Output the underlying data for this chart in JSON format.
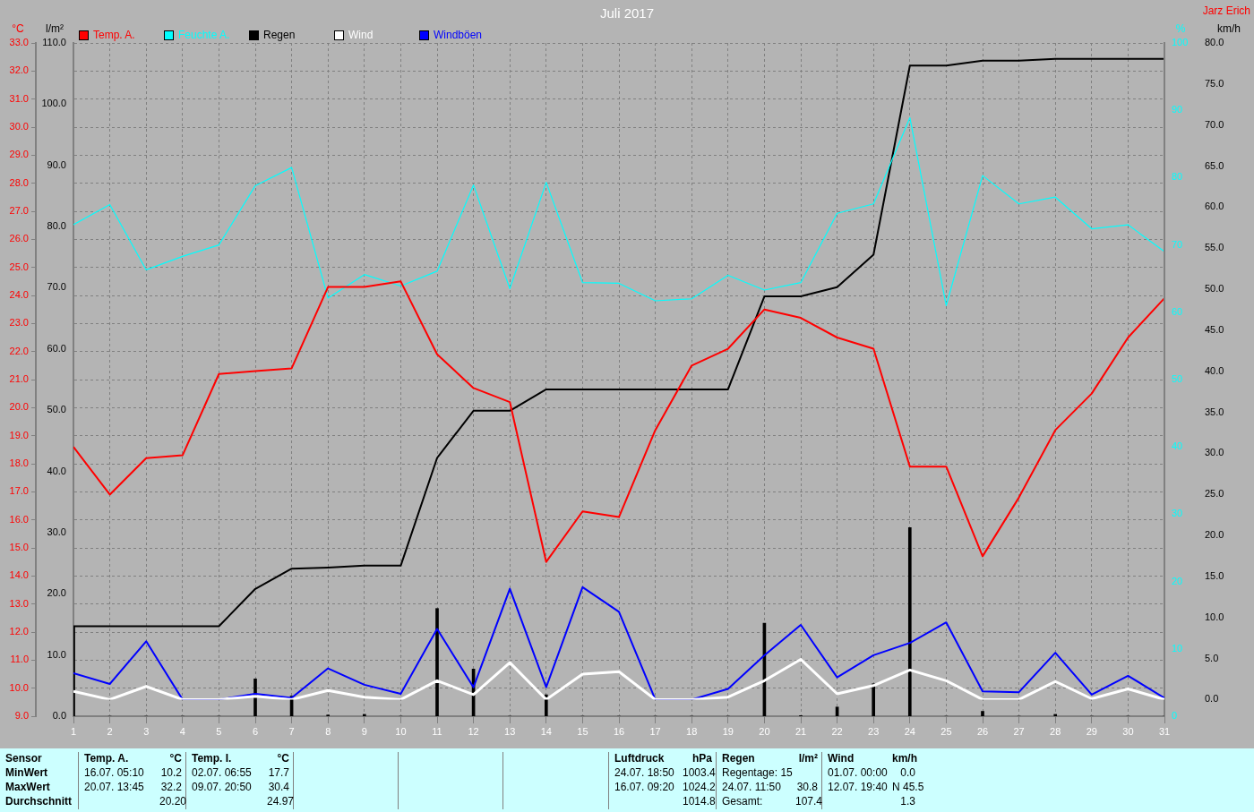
{
  "chart_data": [
    {
      "type": "line",
      "title": "Juli 2017",
      "ylabel": "°C",
      "y2label": "l/m²",
      "y3label": "%",
      "x": [
        1,
        2,
        3,
        4,
        5,
        6,
        7,
        8,
        9,
        10,
        11,
        12,
        13,
        14,
        15,
        16,
        17,
        18,
        19,
        20,
        21,
        22,
        23,
        24,
        25,
        26,
        27,
        28,
        29,
        30,
        31
      ],
      "xlim": [
        1,
        31
      ],
      "xticks": [
        1,
        2,
        3,
        4,
        5,
        6,
        7,
        8,
        9,
        10,
        11,
        12,
        13,
        14,
        15,
        16,
        17,
        18,
        19,
        20,
        21,
        22,
        23,
        24,
        25,
        26,
        27,
        28,
        29,
        30,
        31
      ],
      "ylim": [
        9,
        33
      ],
      "yticks": [
        {
          "value": 9,
          "label": "9.0"
        },
        {
          "value": 10,
          "label": "10.0"
        },
        {
          "value": 11,
          "label": "11.0"
        },
        {
          "value": 12,
          "label": "12.0"
        },
        {
          "value": 13,
          "label": "13.0"
        },
        {
          "value": 14,
          "label": "14.0"
        },
        {
          "value": 15,
          "label": "15.0"
        },
        {
          "value": 16,
          "label": "16.0"
        },
        {
          "value": 17,
          "label": "17.0"
        },
        {
          "value": 18,
          "label": "18.0"
        },
        {
          "value": 19,
          "label": "19.0"
        },
        {
          "value": 20,
          "label": "20.0"
        },
        {
          "value": 21,
          "label": "21.0"
        },
        {
          "value": 22,
          "label": "22.0"
        },
        {
          "value": 23,
          "label": "23.0"
        },
        {
          "value": 24,
          "label": "24.0"
        },
        {
          "value": 25,
          "label": "25.0"
        },
        {
          "value": 26,
          "label": "26.0"
        },
        {
          "value": 27,
          "label": "27.0"
        },
        {
          "value": 28,
          "label": "28.0"
        },
        {
          "value": 29,
          "label": "29.0"
        },
        {
          "value": 30,
          "label": "30.0"
        },
        {
          "value": 31,
          "label": "31.0"
        },
        {
          "value": 32,
          "label": "32.0"
        },
        {
          "value": 33,
          "label": "33.0"
        }
      ],
      "y2lim": [
        0,
        110
      ],
      "y2ticks": [
        {
          "value": 0,
          "label": "0.0"
        },
        {
          "value": 10,
          "label": "10.0"
        },
        {
          "value": 20,
          "label": "20.0"
        },
        {
          "value": 30,
          "label": "30.0"
        },
        {
          "value": 40,
          "label": "40.0"
        },
        {
          "value": 50,
          "label": "50.0"
        },
        {
          "value": 60,
          "label": "60.0"
        },
        {
          "value": 70,
          "label": "70.0"
        },
        {
          "value": 80,
          "label": "80.0"
        },
        {
          "value": 90,
          "label": "90.0"
        },
        {
          "value": 100,
          "label": "100.0"
        },
        {
          "value": 110,
          "label": "110.0"
        }
      ],
      "y3lim": [
        0,
        100
      ],
      "y3ticks": [
        0,
        10,
        20,
        30,
        40,
        50,
        60,
        70,
        80,
        90,
        100
      ],
      "grid": true,
      "legend": "top left",
      "series": [
        {
          "type": "bar",
          "axis": "y2",
          "color": "#000000",
          "values": [
            14.7,
            0,
            0,
            0,
            0,
            6.1,
            3.3,
            0.2,
            0.3,
            0,
            17.6,
            7.7,
            0,
            3.5,
            0,
            0,
            0,
            0,
            0,
            15.2,
            0.1,
            1.5,
            5.3,
            30.8,
            0,
            0.8,
            0,
            0.3,
            0,
            0,
            0
          ]
        },
        {
          "name": "Temp. A.",
          "color": "#ff0000",
          "values": [
            18.6,
            16.9,
            18.2,
            18.3,
            21.2,
            21.3,
            21.4,
            24.3,
            24.3,
            24.5,
            21.9,
            20.7,
            20.2,
            14.5,
            16.3,
            16.1,
            19.2,
            21.5,
            22.1,
            23.5,
            23.2,
            22.5,
            22.1,
            17.9,
            17.9,
            14.7,
            16.8,
            19.2,
            20.5,
            22.5,
            23.9
          ]
        },
        {
          "name": "Feuchte A.",
          "axis": "y3",
          "color": "#00ffff",
          "values": [
            73,
            76,
            66.3,
            68.3,
            70,
            78.8,
            81.5,
            62.1,
            65.6,
            63.9,
            66.1,
            78.9,
            63.5,
            79.3,
            64.4,
            64.3,
            61.7,
            62,
            65.5,
            63.3,
            64.4,
            74.7,
            76.1,
            88.9,
            61,
            80.3,
            76.1,
            77.1,
            72.4,
            73,
            69
          ]
        },
        {
          "name": "Regen",
          "axis": "y2",
          "color": "#000000",
          "values": [
            14.7,
            14.7,
            14.7,
            14.7,
            14.7,
            20.8,
            24.1,
            24.3,
            24.6,
            24.6,
            42.2,
            49.9,
            49.9,
            53.4,
            53.4,
            53.4,
            53.4,
            53.4,
            53.4,
            68.6,
            68.6,
            70.1,
            75.4,
            106.3,
            106.3,
            107.1,
            107.1,
            107.4,
            107.4,
            107.4,
            107.4
          ]
        }
      ],
      "annotations": [
        "Jarz Erich",
        "Sensor",
        "Temp. A.",
        "°C",
        "Temp. I.",
        "°C",
        null,
        null,
        null,
        "Luftdruck",
        "hPa",
        "Regen",
        "l/m²",
        "Wind",
        "km/h",
        "MinWert",
        "16.07. 05:10",
        "10.2",
        "02.07. 06:55",
        "17.7",
        null,
        null,
        null,
        "24.07. 18:50",
        "1003.4",
        "Regentage: 15",
        null,
        "01.07. 00:00",
        "0.0",
        "MaxWert",
        "20.07. 13:45",
        "32.2",
        "09.07. 20:50",
        "30.4",
        null,
        null,
        null,
        "16.07. 09:20",
        "1024.2",
        "24.07. 11:50",
        "30.8",
        "12.07. 19:40",
        "N 45.5",
        "Durchschnitt",
        null,
        "20.20",
        null,
        "24.97",
        null,
        null,
        null,
        null,
        "1014.8",
        "Gesamt:",
        "107.4",
        null,
        "1.3"
      ]
    },
    {
      "type": "line",
      "ylabel": "km/h",
      "tick_labels": "y",
      "legend": "top left",
      "x": [
        1,
        2,
        3,
        4,
        5,
        6,
        7,
        8,
        9,
        10,
        11,
        12,
        13,
        14,
        15,
        16,
        17,
        18,
        19,
        20,
        21,
        22,
        23,
        24,
        25,
        26,
        27,
        28,
        29,
        30,
        31
      ],
      "xlim": [
        1,
        31
      ],
      "ylim": [
        0,
        80
      ],
      "yticks": [
        {
          "value": 0,
          "label": "0.0"
        },
        {
          "value": 5,
          "label": "5.0"
        },
        {
          "value": 10,
          "label": "10.0"
        },
        {
          "value": 15,
          "label": "15.0"
        },
        {
          "value": 20,
          "label": "20.0"
        },
        {
          "value": 25,
          "label": "25.0"
        },
        {
          "value": 30,
          "label": "30.0"
        },
        {
          "value": 35,
          "label": "35.0"
        },
        {
          "value": 40,
          "label": "40.0"
        },
        {
          "value": 45,
          "label": "45.0"
        },
        {
          "value": 50,
          "label": "50.0"
        },
        {
          "value": 55,
          "label": "55.0"
        },
        {
          "value": 60,
          "label": "60.0"
        },
        {
          "value": 65,
          "label": "65.0"
        },
        {
          "value": 70,
          "label": "70.0"
        },
        {
          "value": 75,
          "label": "75.0"
        },
        {
          "value": 80,
          "label": "80.0"
        }
      ],
      "series": [
        {
          "name": "Wind",
          "color": "#ffffff",
          "values": [
            1.0,
            0,
            1.6,
            0,
            0,
            0.4,
            0,
            1.1,
            0.3,
            0,
            2.3,
            0.6,
            4.5,
            0,
            3.1,
            3.4,
            0,
            0,
            0.3,
            2.3,
            4.9,
            0.7,
            1.7,
            3.6,
            2.3,
            0,
            0,
            2.2,
            0.1,
            1.3,
            0
          ]
        },
        {
          "name": "Windböen",
          "color": "#0000ff",
          "values": [
            3.2,
            1.9,
            7.1,
            0,
            0,
            0.7,
            0.2,
            3.8,
            1.8,
            0.7,
            8.6,
            1.5,
            13.5,
            1.5,
            13.7,
            10.7,
            0,
            0,
            1.3,
            5.4,
            9.1,
            2.7,
            5.4,
            6.9,
            9.4,
            1.0,
            0.9,
            5.7,
            0.6,
            2.9,
            0.2
          ]
        }
      ]
    }
  ]
}
